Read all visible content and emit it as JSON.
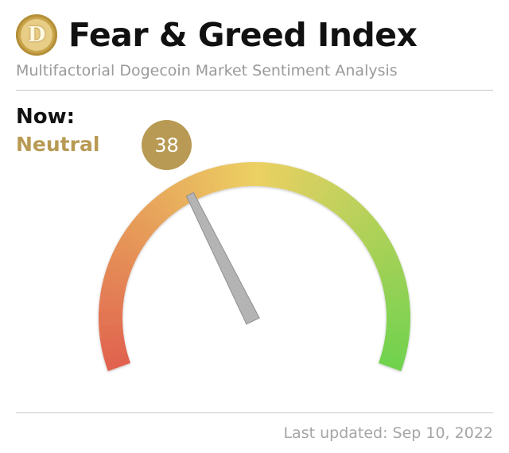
{
  "header": {
    "logo_icon": "dogecoin-logo",
    "logo_letter": "D",
    "title": "Fear & Greed Index",
    "subtitle": "Multifactorial Dogecoin Market Sentiment Analysis"
  },
  "current": {
    "label": "Now:",
    "status": "Neutral",
    "value": "38",
    "status_color": "#b89a54"
  },
  "gauge": {
    "min": 0,
    "max": 100,
    "value": 38,
    "colors": {
      "fear": "#e0614f",
      "neutral": "#ecd063",
      "greed": "#6fd24e",
      "needle": "#b4b4b4"
    }
  },
  "footer": {
    "last_updated": "Last updated: Sep 10, 2022"
  }
}
